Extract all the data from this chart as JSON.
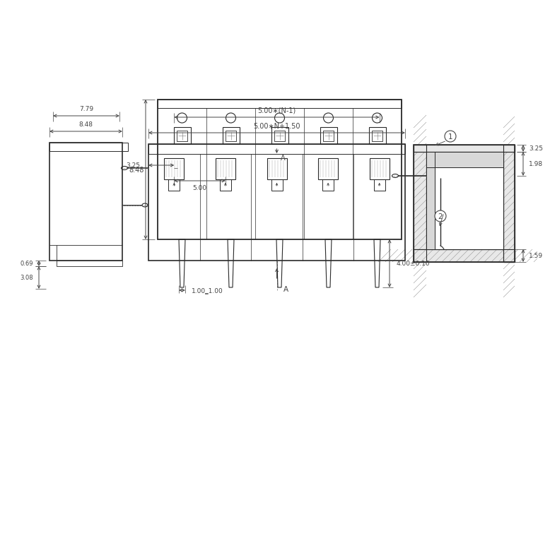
{
  "bg": "#ffffff",
  "lc": "#2a2a2a",
  "dc": "#444444",
  "labels": {
    "848": "8.48",
    "779": "7.79",
    "325": "3.25",
    "198": "1.98",
    "069": "0.69",
    "308": "3.08",
    "500n150": "5.00∗N+1.50",
    "500n1": "5.00∗(N-1)",
    "500": "5.00",
    "400": "4.00±0.10",
    "100x100": "1.00‗1.00",
    "159": "1.59",
    "A": "A",
    "1": "1",
    "2": "2"
  }
}
